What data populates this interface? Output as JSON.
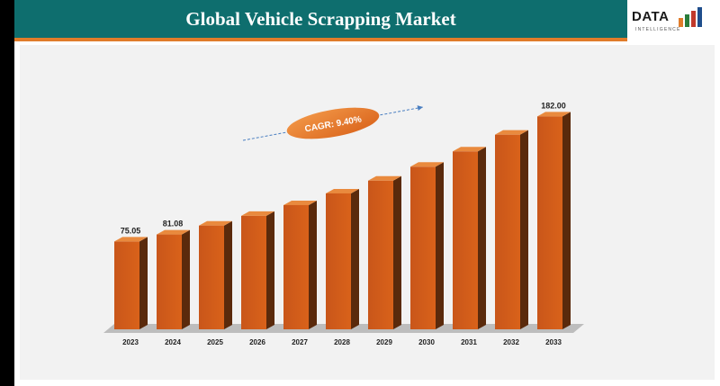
{
  "header": {
    "title": "Global Vehicle Scrapping Market"
  },
  "logo": {
    "text": "DATA",
    "subtext": "INTELLIGENCE"
  },
  "colors": {
    "bar_front": "#d9621a",
    "bar_side": "#5a2a0c",
    "floor": "#bdbdbd",
    "header": "#0e6e6e",
    "accent": "#e07c2a",
    "arrow": "#4a7fc1"
  },
  "chart_data": {
    "type": "bar",
    "categories": [
      "2023",
      "2024",
      "2025",
      "2026",
      "2027",
      "2028",
      "2029",
      "2030",
      "2031",
      "2032",
      "2033"
    ],
    "values": [
      75.05,
      81.08,
      88.7,
      97.0,
      106.2,
      116.2,
      127.1,
      139.0,
      152.1,
      166.4,
      182.0
    ],
    "data_labels": [
      "75.05",
      "81.08",
      "",
      "",
      "",
      "",
      "",
      "",
      "",
      "",
      "182.00"
    ],
    "annotation": "CAGR: 9.40%",
    "ylim": [
      0,
      200
    ],
    "grid": false,
    "legend": false
  }
}
